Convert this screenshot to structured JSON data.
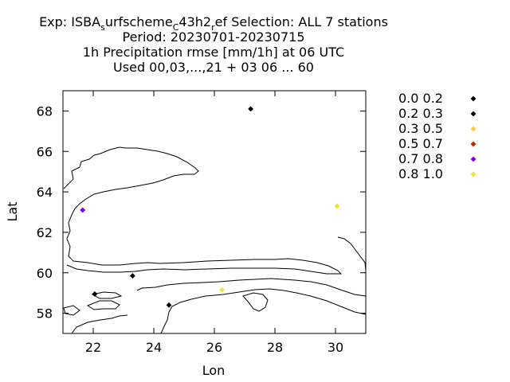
{
  "chart_data": {
    "type": "scatter",
    "title_lines": [
      {
        "parts": [
          "Exp: ISBA",
          "s",
          "urfscheme",
          "C",
          "43h2",
          "r",
          "ef   Selection: ALL       7 stations"
        ]
      },
      {
        "parts": [
          "Period: 20230701-20230715"
        ]
      },
      {
        "parts": [
          "1h Precipitation rmse [mm/1h] at  06 UTC"
        ]
      },
      {
        "parts": [
          "Used  00,03,...,21  + 03 06 ... 60"
        ]
      }
    ],
    "xlabel": "Lon",
    "ylabel": "Lat",
    "xlim": [
      21,
      31
    ],
    "ylim": [
      57,
      69
    ],
    "xticks": [
      22,
      24,
      26,
      28,
      30
    ],
    "yticks": [
      58,
      60,
      62,
      64,
      66,
      68
    ],
    "grid": false,
    "legend_position": "right",
    "legend": [
      {
        "label": "0.0 0.2",
        "color": "#000000"
      },
      {
        "label": "0.2 0.3",
        "color": "#000000"
      },
      {
        "label": "0.3 0.5",
        "color": "#f5d33a"
      },
      {
        "label": "0.5 0.7",
        "color": "#cc2200"
      },
      {
        "label": "0.7 0.8",
        "color": "#8a00d4"
      },
      {
        "label": "0.8 1.0",
        "color": "#f5e03a"
      }
    ],
    "points": [
      {
        "lon": 27.2,
        "lat": 68.1,
        "color": "#000000"
      },
      {
        "lon": 30.05,
        "lat": 63.3,
        "color": "#f5e03a"
      },
      {
        "lon": 21.65,
        "lat": 63.1,
        "color": "#8a00d4"
      },
      {
        "lon": 23.3,
        "lat": 59.85,
        "color": "#000000"
      },
      {
        "lon": 22.05,
        "lat": 58.95,
        "color": "#000000"
      },
      {
        "lon": 24.5,
        "lat": 58.4,
        "color": "#000000"
      },
      {
        "lon": 26.25,
        "lat": 59.15,
        "color": "#f5e03a"
      }
    ]
  }
}
